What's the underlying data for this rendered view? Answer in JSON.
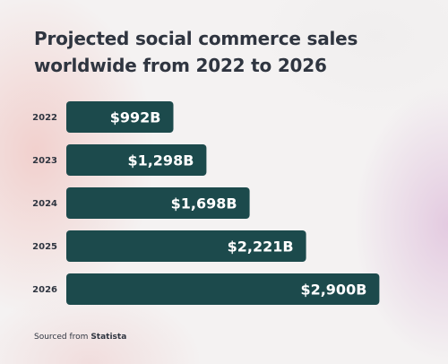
{
  "chart_data": {
    "type": "bar",
    "orientation": "horizontal",
    "title": "Projected social commerce sales worldwide from 2022 to 2026",
    "categories": [
      "2022",
      "2023",
      "2024",
      "2025",
      "2026"
    ],
    "values": [
      992,
      1298,
      1698,
      2221,
      2900
    ],
    "data_labels": [
      "$992B",
      "$1,298B",
      "$1,698B",
      "$2,221B",
      "$2,900B"
    ],
    "unit": "B",
    "grid": false,
    "legend": "none",
    "bar_color": "#1c4a4c"
  },
  "source": {
    "prefix": "Sourced from",
    "name": "Statista"
  }
}
